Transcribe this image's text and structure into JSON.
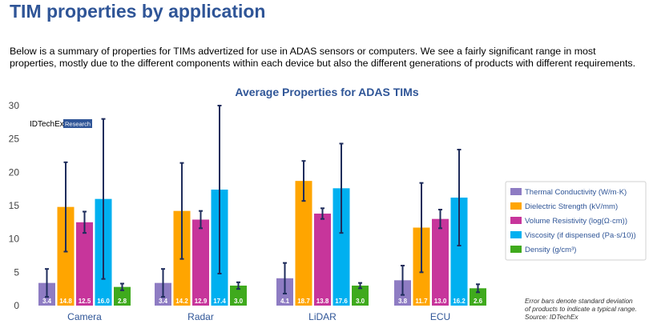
{
  "slide": {
    "title": "TIM properties by application",
    "intro": "Below is a summary of properties for TIMs advertized for use in ADAS sensors or computers. We see a fairly significant range in most properties, mostly due to the different components within each device but also the different generations of products with different requirements.",
    "note_lines": [
      "Error bars denote standard deviation",
      "of products to indicate a typical range.",
      "Source: IDTechEx"
    ]
  },
  "logo": {
    "brand": "IDTechEx",
    "tag": "Research",
    "tag_color": "#2f5597"
  },
  "chart_data": {
    "type": "bar",
    "title": "Average Properties for ADAS TIMs",
    "categories": [
      "Camera",
      "Radar",
      "LiDAR",
      "ECU"
    ],
    "ylim": [
      0,
      30
    ],
    "yticks": [
      0,
      5,
      10,
      15,
      20,
      25,
      30
    ],
    "grid": false,
    "legend_position": "right",
    "error_bar_color": "#1f2d5c",
    "series": [
      {
        "name": "Thermal Conductivity (W/m·K)",
        "color": "#8e7cc3",
        "values": [
          3.4,
          3.4,
          4.1,
          3.8
        ],
        "value_labels": [
          "3.4",
          "3.4",
          "4.1",
          "3.8"
        ],
        "error": [
          2.1,
          2.1,
          2.3,
          2.2
        ]
      },
      {
        "name": "Dielectric Strength (kV/mm)",
        "color": "#ffa500",
        "values": [
          14.8,
          14.2,
          18.7,
          11.7
        ],
        "value_labels": [
          "14.8",
          "14.2",
          "18.7",
          "11.7"
        ],
        "error": [
          6.7,
          7.2,
          3.0,
          6.7
        ]
      },
      {
        "name": "Volume Resistivity (log(Ω·cm))",
        "color": "#c7359b",
        "values": [
          12.5,
          12.9,
          13.8,
          13.0
        ],
        "value_labels": [
          "12.5",
          "12.9",
          "13.8",
          "13.0"
        ],
        "error": [
          1.6,
          1.3,
          0.8,
          1.4
        ]
      },
      {
        "name": "Viscosity (if dispensed (Pa·s/10))",
        "color": "#00b0f0",
        "values": [
          16.0,
          17.4,
          17.6,
          16.2
        ],
        "value_labels": [
          "16.0",
          "17.4",
          "17.6",
          "16.2"
        ],
        "error": [
          12.0,
          12.6,
          6.7,
          7.2
        ]
      },
      {
        "name": "Density (g/cm³)",
        "color": "#3faa1d",
        "values": [
          2.8,
          3.0,
          3.0,
          2.6
        ],
        "value_labels": [
          "2.8",
          "3.0",
          "3.0",
          "2.6"
        ],
        "error": [
          0.5,
          0.5,
          0.4,
          0.6
        ]
      }
    ]
  }
}
